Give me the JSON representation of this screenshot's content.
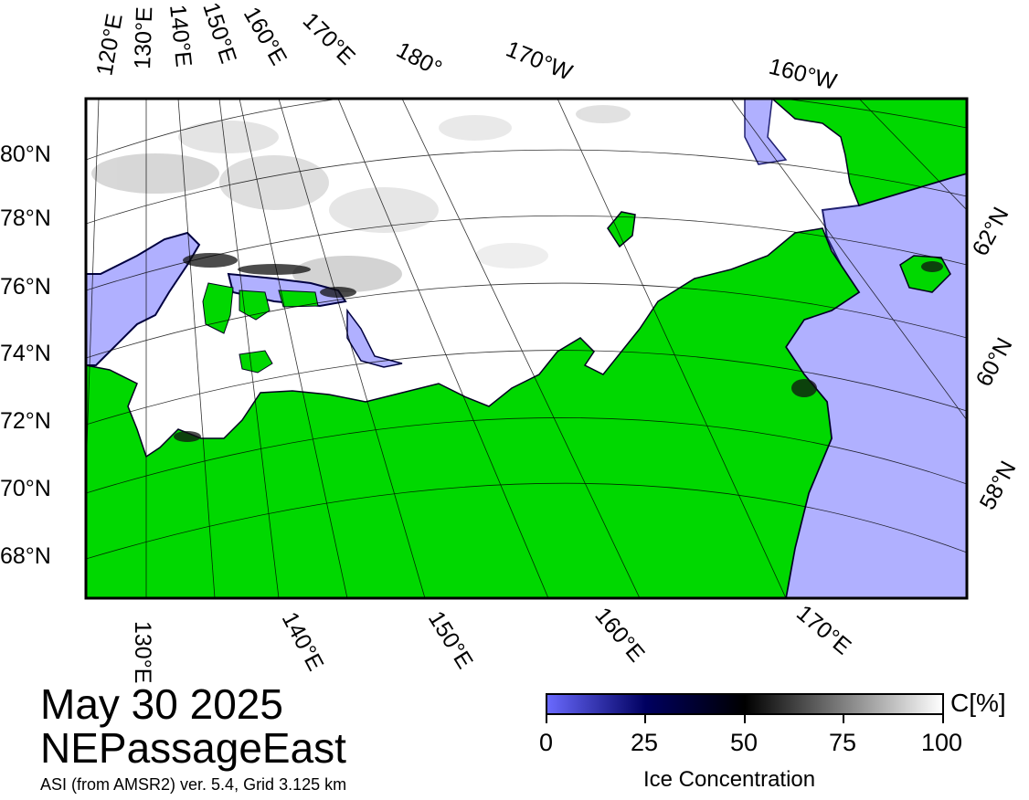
{
  "map": {
    "date": "May 30 2025",
    "region": "NEPassageEast",
    "source": "ASI (from AMSR2) ver. 5.4,  Grid 3.125 km",
    "colors": {
      "land": "#00d800",
      "open_water": "#b0b0ff",
      "ice_full": "#ffffff",
      "coast_dark": "#000020",
      "grid": "#000000"
    },
    "lat_labels_left": [
      "80°N",
      "78°N",
      "76°N",
      "74°N",
      "72°N",
      "70°N",
      "68°N"
    ],
    "lat_labels_right": [
      "62°N",
      "60°N",
      "58°N"
    ],
    "lon_labels_top": [
      "120°E",
      "130°E",
      "140°E",
      "150°E",
      "160°E",
      "170°E",
      "180°",
      "170°W",
      "160°W"
    ],
    "lon_labels_bottom": [
      "130°E",
      "140°E",
      "150°E",
      "160°E",
      "170°E"
    ]
  },
  "colorbar": {
    "ticks": [
      "0",
      "25",
      "50",
      "75",
      "100"
    ],
    "unit": "C[%]",
    "label": "Ice Concentration",
    "stops": [
      "#6a6aff",
      "#000060",
      "#000000",
      "#808080",
      "#ffffff"
    ]
  }
}
